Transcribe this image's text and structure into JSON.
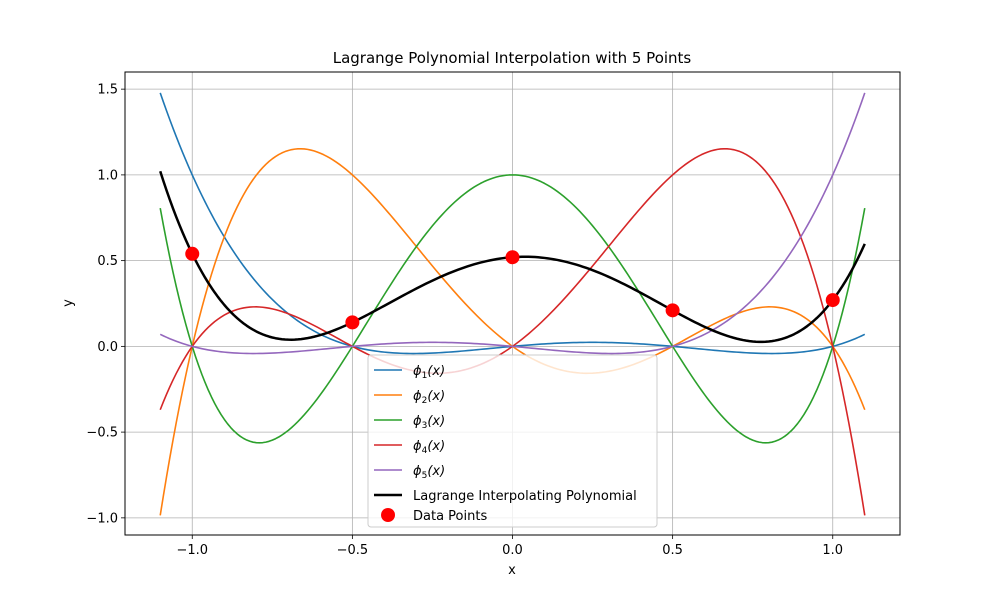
{
  "chart_data": {
    "type": "line",
    "title": "Lagrange Polynomial Interpolation with 5 Points",
    "xlabel": "x",
    "ylabel": "y",
    "xlim": [
      -1.21,
      1.21
    ],
    "ylim": [
      -1.1,
      1.6
    ],
    "grid": true,
    "legend_position": "bottom-center",
    "x_ticks": [
      -1.0,
      -0.5,
      0.0,
      0.5,
      1.0
    ],
    "x_tick_labels": [
      "−1.0",
      "−0.5",
      "0.0",
      "0.5",
      "1.0"
    ],
    "y_ticks": [
      -1.0,
      -0.5,
      0.0,
      0.5,
      1.0,
      1.5
    ],
    "y_tick_labels": [
      "−1.0",
      "−0.5",
      "0.0",
      "0.5",
      "1.0",
      "1.5"
    ],
    "x_range": [
      -1.1,
      1.1
    ],
    "nodes": [
      -1.0,
      -0.5,
      0.0,
      0.5,
      1.0
    ],
    "data_points": {
      "name": "Data Points",
      "color": "#ff0000",
      "x": [
        -1.0,
        -0.5,
        0.0,
        0.5,
        1.0
      ],
      "y": [
        0.54,
        0.14,
        0.52,
        0.21,
        0.27
      ]
    },
    "series": [
      {
        "name": "ϕ₁(x)",
        "base": "ϕ",
        "sub": "1",
        "arg": "(x)",
        "color": "#1f77b4",
        "basis_index": 0
      },
      {
        "name": "ϕ₂(x)",
        "base": "ϕ",
        "sub": "2",
        "arg": "(x)",
        "color": "#ff7f0e",
        "basis_index": 1
      },
      {
        "name": "ϕ₃(x)",
        "base": "ϕ",
        "sub": "3",
        "arg": "(x)",
        "color": "#2ca02c",
        "basis_index": 2
      },
      {
        "name": "ϕ₄(x)",
        "base": "ϕ",
        "sub": "4",
        "arg": "(x)",
        "color": "#d62728",
        "basis_index": 3
      },
      {
        "name": "ϕ₅(x)",
        "base": "ϕ",
        "sub": "5",
        "arg": "(x)",
        "color": "#9467bd",
        "basis_index": 4
      },
      {
        "name": "Lagrange Interpolating Polynomial",
        "color": "#000000",
        "interpolant": true
      }
    ]
  }
}
